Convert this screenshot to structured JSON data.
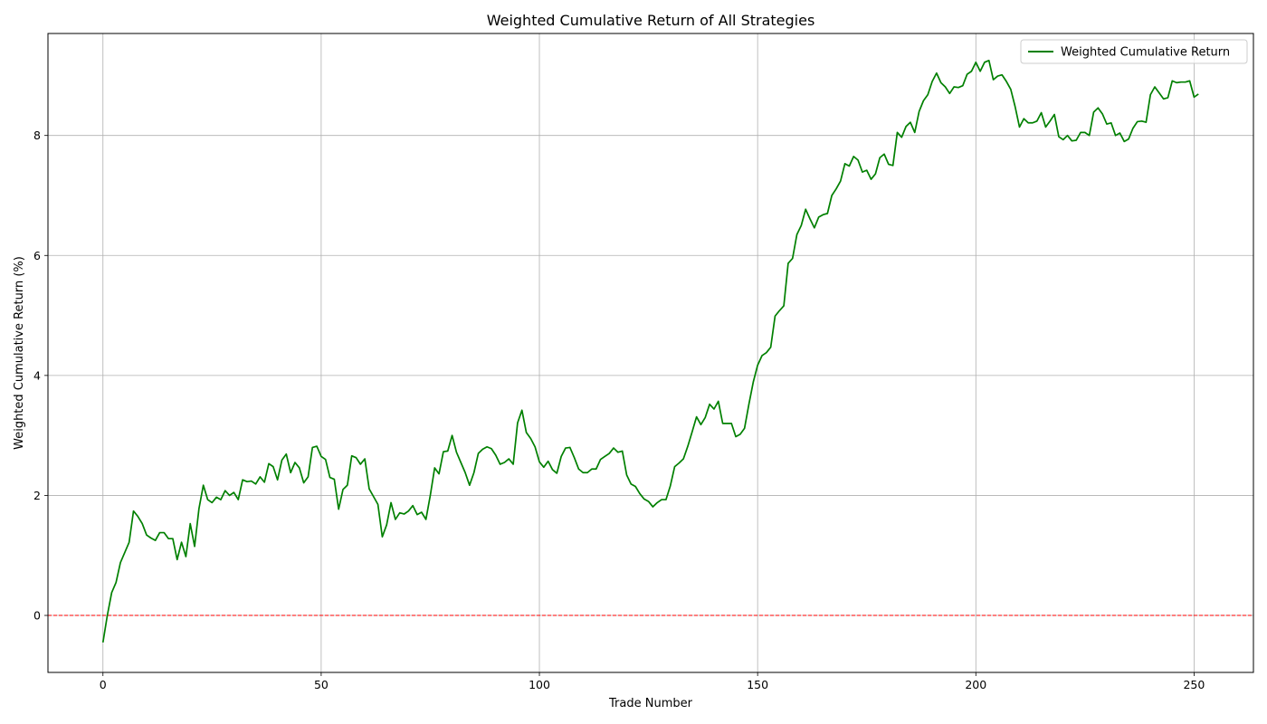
{
  "chart_data": {
    "type": "line",
    "title": "Weighted Cumulative Return of All Strategies",
    "xlabel": "Trade Number",
    "ylabel": "Weighted Cumulative Return (%)",
    "xlim": [
      -12.6,
      263.6
    ],
    "ylim": [
      -0.95,
      9.7
    ],
    "x_ticks": [
      0,
      50,
      100,
      150,
      200,
      250
    ],
    "y_ticks": [
      0,
      2,
      4,
      6,
      8
    ],
    "grid": true,
    "legend_position": "upper right",
    "reference_line": {
      "y": 0,
      "color": "#ff0000",
      "style": "dashed"
    },
    "series": [
      {
        "name": "Weighted Cumulative Return",
        "color": "#008000",
        "y": [
          -0.45,
          0.0,
          0.38,
          0.55,
          0.88,
          1.05,
          1.22,
          1.74,
          1.65,
          1.53,
          1.34,
          1.29,
          1.25,
          1.38,
          1.38,
          1.28,
          1.28,
          0.93,
          1.22,
          0.98,
          1.53,
          1.15,
          1.78,
          2.17,
          1.93,
          1.88,
          1.97,
          1.93,
          2.08,
          2.0,
          2.05,
          1.93,
          2.26,
          2.23,
          2.24,
          2.19,
          2.31,
          2.22,
          2.53,
          2.48,
          2.26,
          2.59,
          2.69,
          2.38,
          2.55,
          2.46,
          2.21,
          2.31,
          2.8,
          2.82,
          2.65,
          2.6,
          2.3,
          2.27,
          1.77,
          2.1,
          2.17,
          2.66,
          2.63,
          2.52,
          2.61,
          2.11,
          1.98,
          1.85,
          1.31,
          1.51,
          1.88,
          1.6,
          1.71,
          1.69,
          1.74,
          1.83,
          1.68,
          1.72,
          1.6,
          2.0,
          2.46,
          2.36,
          2.73,
          2.74,
          3.0,
          2.72,
          2.55,
          2.38,
          2.17,
          2.38,
          2.7,
          2.77,
          2.81,
          2.78,
          2.67,
          2.52,
          2.55,
          2.61,
          2.52,
          3.21,
          3.42,
          3.05,
          2.95,
          2.81,
          2.56,
          2.47,
          2.57,
          2.43,
          2.37,
          2.65,
          2.79,
          2.8,
          2.63,
          2.44,
          2.38,
          2.38,
          2.44,
          2.44,
          2.6,
          2.65,
          2.7,
          2.79,
          2.72,
          2.74,
          2.34,
          2.19,
          2.15,
          2.03,
          1.94,
          1.9,
          1.81,
          1.88,
          1.93,
          1.93,
          2.16,
          2.48,
          2.54,
          2.61,
          2.82,
          3.06,
          3.31,
          3.18,
          3.3,
          3.52,
          3.44,
          3.57,
          3.2,
          3.2,
          3.2,
          2.98,
          3.02,
          3.12,
          3.52,
          3.89,
          4.17,
          4.33,
          4.38,
          4.47,
          4.99,
          5.08,
          5.16,
          5.87,
          5.95,
          6.35,
          6.5,
          6.77,
          6.61,
          6.46,
          6.64,
          6.68,
          6.7,
          7.0,
          7.11,
          7.24,
          7.53,
          7.49,
          7.65,
          7.59,
          7.39,
          7.42,
          7.27,
          7.36,
          7.63,
          7.69,
          7.52,
          7.5,
          8.05,
          7.97,
          8.15,
          8.22,
          8.05,
          8.4,
          8.58,
          8.68,
          8.9,
          9.04,
          8.88,
          8.81,
          8.7,
          8.81,
          8.8,
          8.83,
          9.02,
          9.07,
          9.22,
          9.07,
          9.22,
          9.25,
          8.93,
          8.99,
          9.01,
          8.9,
          8.77,
          8.48,
          8.14,
          8.28,
          8.21,
          8.21,
          8.24,
          8.38,
          8.14,
          8.24,
          8.35,
          7.98,
          7.93,
          8.0,
          7.91,
          7.92,
          8.05,
          8.05,
          8.0,
          8.39,
          8.46,
          8.36,
          8.19,
          8.21,
          8.0,
          8.04,
          7.9,
          7.94,
          8.12,
          8.23,
          8.24,
          8.22,
          8.68,
          8.81,
          8.71,
          8.61,
          8.63,
          8.91,
          8.88,
          8.89,
          8.89,
          8.91,
          8.64,
          8.69
        ]
      }
    ]
  }
}
